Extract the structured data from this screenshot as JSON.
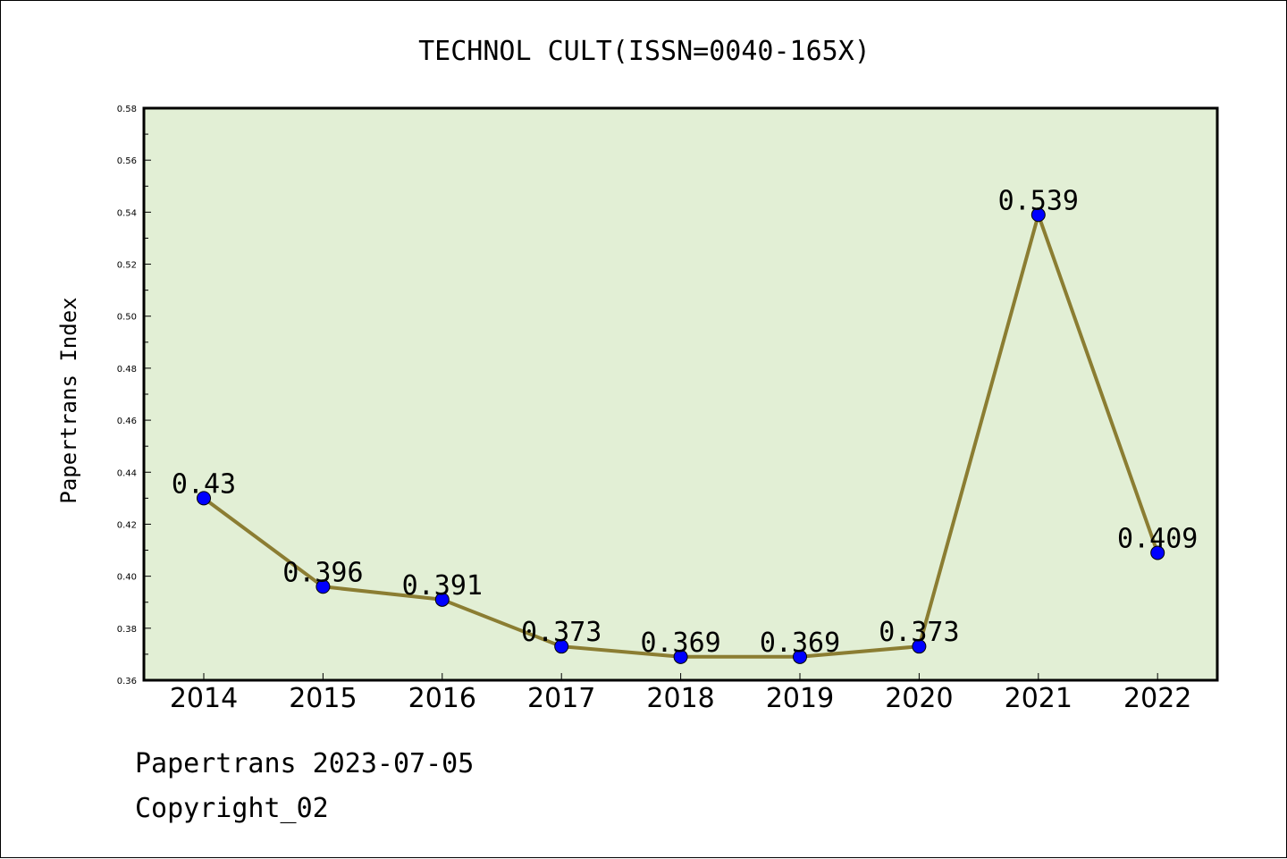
{
  "chart_data": {
    "type": "line",
    "title": "TECHNOL CULT(ISSN=0040-165X)",
    "xlabel": "",
    "ylabel": "Papertrans Index",
    "categories": [
      "2014",
      "2015",
      "2016",
      "2017",
      "2018",
      "2019",
      "2020",
      "2021",
      "2022"
    ],
    "values": [
      0.43,
      0.396,
      0.391,
      0.373,
      0.369,
      0.369,
      0.373,
      0.539,
      0.409
    ],
    "data_labels": [
      "0.43",
      "0.396",
      "0.391",
      "0.373",
      "0.369",
      "0.369",
      "0.373",
      "0.539",
      "0.409"
    ],
    "ylim": [
      0.36,
      0.58
    ],
    "yticks": [
      "0.36",
      "0.38",
      "0.40",
      "0.42",
      "0.44",
      "0.46",
      "0.48",
      "0.50",
      "0.52",
      "0.54",
      "0.56",
      "0.58"
    ],
    "grid": false,
    "legend": "none",
    "colors": {
      "plot_background": "#e2efd5",
      "line": "#8b7d32",
      "marker": "#0000ff"
    }
  },
  "footer": {
    "source": "Papertrans 2023-07-05",
    "copyright": "Copyright_02"
  }
}
